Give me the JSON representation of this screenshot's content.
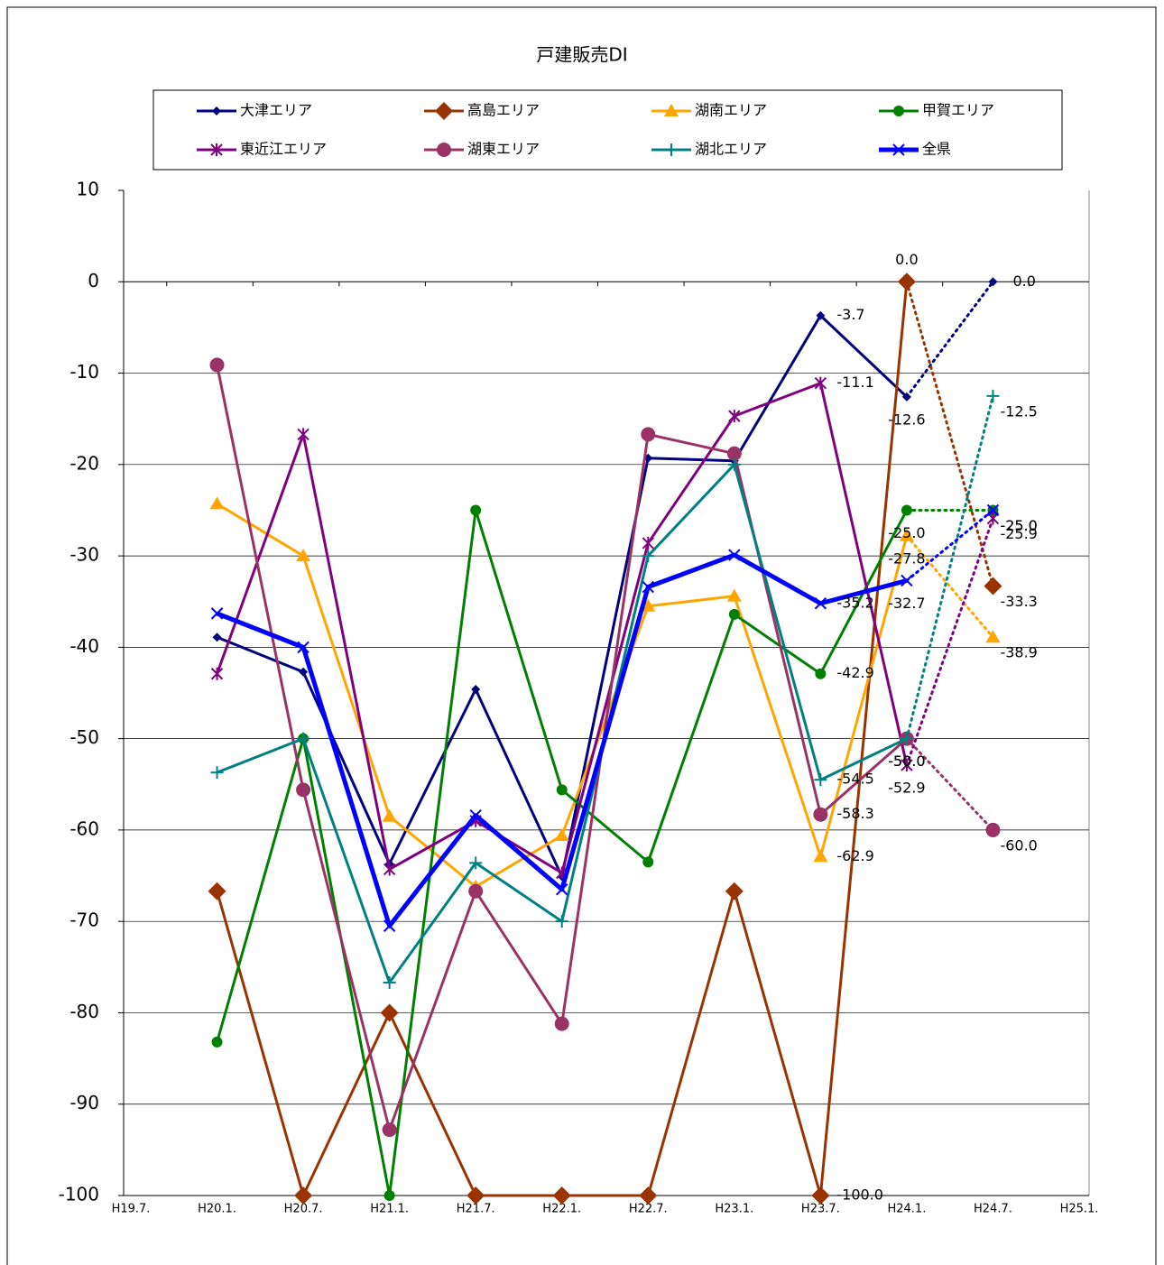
{
  "chart_data": {
    "type": "line",
    "title": "戸建販売DI",
    "categories": [
      "H19.7.",
      "H20.1.",
      "H20.7.",
      "H21.1.",
      "H21.7.",
      "H22.1.",
      "H22.7.",
      "H23.1.",
      "H23.7.",
      "H24.1.",
      "H24.7.",
      "H25.1."
    ],
    "ylim": [
      -100,
      10
    ],
    "yticks": [
      -100,
      -90,
      -80,
      -70,
      -60,
      -50,
      -40,
      -30,
      -20,
      -10,
      0,
      10
    ],
    "negative_tick_color": "#ff0000",
    "grid": true,
    "dotted_last_segment": true,
    "series": [
      {
        "name": "大津エリア",
        "color": "#000080",
        "marker": "diamond-small",
        "width": 3,
        "values": [
          null,
          -38.9,
          -42.7,
          -63.7,
          -44.6,
          -65.1,
          -19.3,
          -19.6,
          -3.7,
          -12.6,
          0.0,
          null
        ],
        "value_labels": [
          null,
          null,
          null,
          null,
          null,
          null,
          null,
          null,
          "-3.7",
          "-12.6",
          "0.0",
          null
        ]
      },
      {
        "name": "高島エリア",
        "color": "#993300",
        "marker": "diamond",
        "width": 3,
        "values": [
          null,
          -66.7,
          -100,
          -80,
          -100,
          -100,
          -100,
          -66.7,
          -100,
          0.0,
          -33.3,
          null
        ],
        "value_labels": [
          null,
          null,
          null,
          null,
          null,
          null,
          null,
          null,
          "-100.0",
          "0.0",
          "-33.3",
          null
        ]
      },
      {
        "name": "湖南エリア",
        "color": "#ffa500",
        "marker": "triangle",
        "width": 3,
        "values": [
          null,
          -24.3,
          -30.0,
          -58.5,
          -66.2,
          -60.6,
          -35.5,
          -34.4,
          -62.9,
          -27.8,
          -38.9,
          null
        ],
        "value_labels": [
          null,
          null,
          null,
          null,
          null,
          null,
          null,
          null,
          "-62.9",
          "-27.8",
          "-38.9",
          null
        ]
      },
      {
        "name": "甲賀エリア",
        "color": "#008000",
        "marker": "circle",
        "width": 3,
        "values": [
          null,
          -83.2,
          -50.0,
          -100,
          -25.0,
          -55.6,
          -63.5,
          -36.4,
          -42.9,
          -25.0,
          -25.0,
          null
        ],
        "value_labels": [
          null,
          null,
          null,
          null,
          null,
          null,
          null,
          null,
          "-42.9",
          "-25.0",
          "-25.0",
          null
        ]
      },
      {
        "name": "東近江エリア",
        "color": "#800080",
        "marker": "asterisk",
        "width": 3,
        "values": [
          null,
          -42.9,
          -16.7,
          -64.3,
          -59.0,
          -64.7,
          -28.6,
          -14.7,
          -11.1,
          -52.9,
          -25.9,
          null
        ],
        "value_labels": [
          null,
          null,
          null,
          null,
          null,
          null,
          null,
          null,
          "-11.1",
          "-52.9",
          "-25.9",
          null
        ]
      },
      {
        "name": "湖東エリア",
        "color": "#993366",
        "marker": "circle-large",
        "width": 3,
        "values": [
          null,
          -9.1,
          -55.6,
          -92.8,
          -66.7,
          -81.2,
          -16.7,
          -18.8,
          -58.3,
          -50.0,
          -60.0,
          null
        ],
        "value_labels": [
          null,
          null,
          null,
          null,
          null,
          null,
          null,
          null,
          "-58.3",
          "-50.0",
          "-60.0",
          null
        ]
      },
      {
        "name": "湖北エリア",
        "color": "#008080",
        "marker": "plus",
        "width": 3,
        "values": [
          null,
          -53.7,
          -50.0,
          -76.7,
          -63.6,
          -70.0,
          -30.0,
          -20.0,
          -54.5,
          -50.0,
          -12.5,
          null
        ],
        "value_labels": [
          null,
          null,
          null,
          null,
          null,
          null,
          null,
          null,
          "-54.5",
          "-50.0",
          "-12.5",
          null
        ]
      },
      {
        "name": "全県",
        "color": "#0000ff",
        "marker": "cross",
        "width": 5,
        "values": [
          null,
          -36.3,
          -40.0,
          -70.5,
          -58.4,
          -66.5,
          -33.4,
          -29.9,
          -35.2,
          -32.7,
          -25.0,
          null
        ],
        "value_labels": [
          null,
          null,
          null,
          null,
          null,
          null,
          null,
          null,
          "-35.2",
          "-32.7",
          "-25.0",
          null
        ]
      }
    ]
  }
}
